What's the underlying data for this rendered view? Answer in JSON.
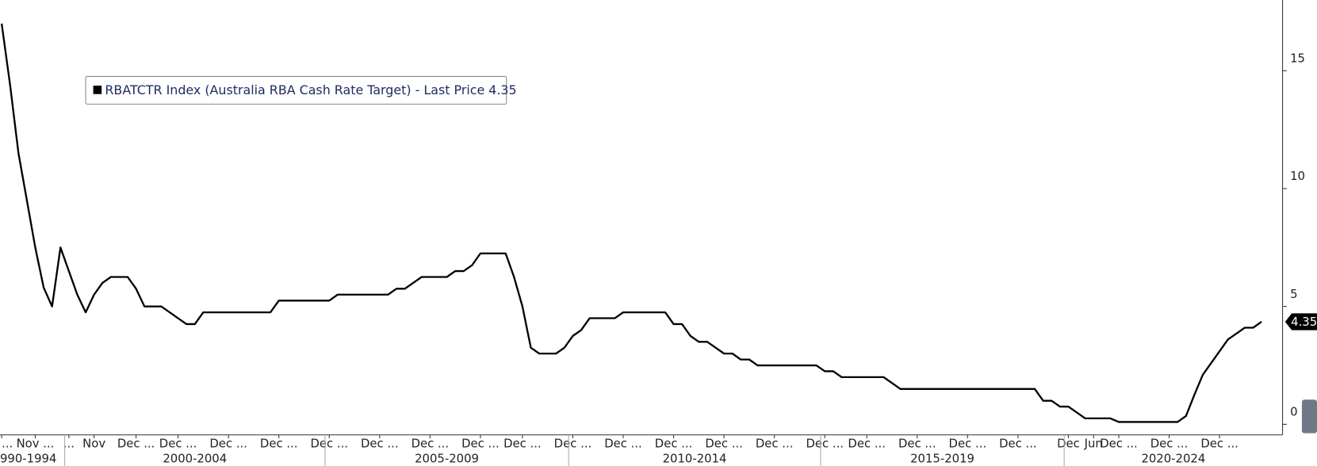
{
  "chart_data": {
    "type": "line",
    "categories": [
      "...",
      null,
      null,
      null,
      "Nov ...",
      null,
      null,
      null,
      "...",
      null,
      null,
      "Nov",
      null,
      null,
      null,
      null,
      "Dec ...",
      null,
      null,
      null,
      null,
      "Dec ...",
      null,
      null,
      null,
      null,
      null,
      "Dec ...",
      null,
      null,
      null,
      null,
      null,
      "Dec ...",
      null,
      null,
      null,
      null,
      null,
      "Dec ...",
      null,
      null,
      null,
      null,
      null,
      "Dec ...",
      null,
      null,
      null,
      null,
      null,
      "Dec ...",
      null,
      null,
      null,
      null,
      null,
      "Dec ...",
      null,
      null,
      null,
      null,
      "Dec ...",
      null,
      null,
      null,
      null,
      null,
      "Dec ...",
      null,
      null,
      null,
      null,
      null,
      "Dec ...",
      null,
      null,
      null,
      null,
      null,
      "Dec ...",
      null,
      null,
      null,
      null,
      null,
      "Dec ...",
      null,
      null,
      null,
      null,
      null,
      "Dec ...",
      null,
      null,
      null,
      null,
      null,
      "Dec ...",
      null,
      null,
      null,
      null,
      "Dec ...",
      null,
      null,
      null,
      null,
      null,
      "Dec ...",
      null,
      null,
      null,
      null,
      null,
      "Dec ...",
      null,
      null,
      null,
      null,
      null,
      "Dec ...",
      null,
      null,
      null,
      null,
      null,
      "Dec",
      null,
      null,
      "Jun",
      null,
      null,
      "Dec ...",
      null,
      null,
      null,
      null,
      null,
      "Dec ...",
      null,
      null,
      null,
      null,
      null,
      "Dec ...",
      null,
      null,
      null,
      null,
      null
    ],
    "category_groups": [
      {
        "label": "990-1994",
        "first": 0,
        "last": 7
      },
      {
        "label": "2000-2004",
        "first": 8,
        "last": 38
      },
      {
        "label": "2005-2009",
        "first": 39,
        "last": 67
      },
      {
        "label": "2010-2014",
        "first": 68,
        "last": 97
      },
      {
        "label": "2015-2019",
        "first": 98,
        "last": 126
      },
      {
        "label": "2020-2024",
        "first": 127,
        "last": 150
      }
    ],
    "series": [
      {
        "name": "RBATCTR Index (Australia RBA Cash Rate Target) - Last Price 4.35",
        "color": "#000000",
        "values": [
          17,
          14.4,
          11.5,
          9.5,
          7.5,
          5.8,
          5.0,
          7.5,
          6.5,
          5.5,
          4.75,
          5.5,
          6.0,
          6.25,
          6.25,
          6.25,
          5.75,
          5.0,
          5.0,
          5.0,
          4.75,
          4.5,
          4.25,
          4.25,
          4.75,
          4.75,
          4.75,
          4.75,
          4.75,
          4.75,
          4.75,
          4.75,
          4.75,
          5.25,
          5.25,
          5.25,
          5.25,
          5.25,
          5.25,
          5.25,
          5.5,
          5.5,
          5.5,
          5.5,
          5.5,
          5.5,
          5.5,
          5.75,
          5.75,
          6.0,
          6.25,
          6.25,
          6.25,
          6.25,
          6.5,
          6.5,
          6.75,
          7.25,
          7.25,
          7.25,
          7.25,
          6.25,
          5.0,
          3.25,
          3.0,
          3.0,
          3.0,
          3.25,
          3.75,
          4.0,
          4.5,
          4.5,
          4.5,
          4.5,
          4.75,
          4.75,
          4.75,
          4.75,
          4.75,
          4.75,
          4.25,
          4.25,
          3.75,
          3.5,
          3.5,
          3.25,
          3.0,
          3.0,
          2.75,
          2.75,
          2.5,
          2.5,
          2.5,
          2.5,
          2.5,
          2.5,
          2.5,
          2.5,
          2.25,
          2.25,
          2.0,
          2.0,
          2.0,
          2.0,
          2.0,
          2.0,
          1.75,
          1.5,
          1.5,
          1.5,
          1.5,
          1.5,
          1.5,
          1.5,
          1.5,
          1.5,
          1.5,
          1.5,
          1.5,
          1.5,
          1.5,
          1.5,
          1.5,
          1.5,
          1.0,
          1.0,
          0.75,
          0.75,
          0.5,
          0.25,
          0.25,
          0.25,
          0.25,
          0.1,
          0.1,
          0.1,
          0.1,
          0.1,
          0.1,
          0.1,
          0.1,
          0.35,
          1.25,
          2.1,
          2.6,
          3.1,
          3.6,
          3.85,
          4.1,
          4.1,
          4.35
        ]
      }
    ],
    "last_price": 4.35,
    "ylim": [
      -0.45,
      18
    ],
    "yticks": [
      0,
      5,
      10,
      15
    ],
    "y_axis_side": "right"
  }
}
